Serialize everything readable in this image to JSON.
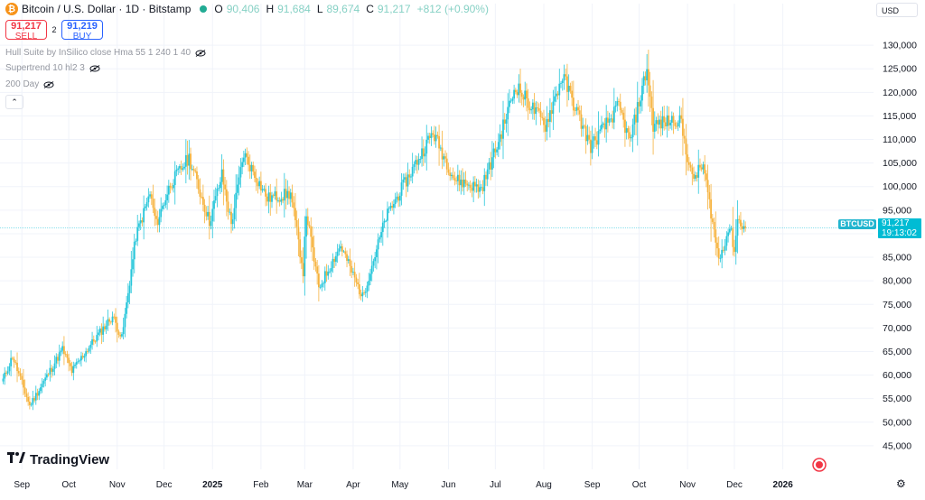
{
  "header": {
    "title": "Bitcoin / U.S. Dollar · 1D · Bitstamp",
    "coin_icon": "bitcoin-icon",
    "ohlc": [
      {
        "k": "O",
        "v": "90,406"
      },
      {
        "k": "H",
        "v": "91,684"
      },
      {
        "k": "L",
        "v": "89,674"
      },
      {
        "k": "C",
        "v": "91,217"
      }
    ],
    "change": "+812 (+0.90%)"
  },
  "trade": {
    "sell_price": "91,217",
    "sell_label": "SELL",
    "spread": "2",
    "buy_price": "91,219",
    "buy_label": "BUY"
  },
  "indicators": [
    {
      "label": "Hull Suite by InSilico close Hma 55 1 240 1 40"
    },
    {
      "label": "Supertrend 10 hl2 3"
    },
    {
      "label": "200 Day"
    }
  ],
  "currency": "USD",
  "symbol_label": "BTCUSD",
  "last_price": "91,217",
  "countdown": "19:13:02",
  "brand": "TradingView",
  "colors": {
    "up": "#26c6da",
    "down": "#f6b23c",
    "grid": "#f0f3fa",
    "last_line": "#00bcd4"
  },
  "chart_data": {
    "type": "candlestick",
    "ylim": [
      40000,
      135000
    ],
    "y_ticks": [
      45000,
      50000,
      55000,
      60000,
      65000,
      70000,
      75000,
      80000,
      85000,
      90000,
      95000,
      100000,
      105000,
      110000,
      115000,
      120000,
      125000,
      130000
    ],
    "y_tick_labels": [
      "45,000",
      "50,000",
      "55,000",
      "60,000",
      "65,000",
      "70,000",
      "75,000",
      "80,000",
      "85,000",
      "90,000",
      "95,000",
      "100,000",
      "105,000",
      "110,000",
      "115,000",
      "120,000",
      "125,000",
      "130,000"
    ],
    "x_ticks": [
      {
        "label": "Sep",
        "date": "2024-09-01"
      },
      {
        "label": "Oct",
        "date": "2024-10-01"
      },
      {
        "label": "Nov",
        "date": "2024-11-01"
      },
      {
        "label": "Dec",
        "date": "2024-12-01"
      },
      {
        "label": "2025",
        "date": "2025-01-01"
      },
      {
        "label": "Feb",
        "date": "2025-02-01"
      },
      {
        "label": "Mar",
        "date": "2025-03-01"
      },
      {
        "label": "Apr",
        "date": "2025-04-01"
      },
      {
        "label": "May",
        "date": "2025-05-01"
      },
      {
        "label": "Jun",
        "date": "2025-06-01"
      },
      {
        "label": "Jul",
        "date": "2025-07-01"
      },
      {
        "label": "Aug",
        "date": "2025-08-01"
      },
      {
        "label": "Sep",
        "date": "2025-09-01"
      },
      {
        "label": "Oct",
        "date": "2025-10-01"
      },
      {
        "label": "Nov",
        "date": "2025-11-01"
      },
      {
        "label": "Dec",
        "date": "2025-12-01"
      },
      {
        "label": "2026",
        "date": "2026-01-01"
      }
    ],
    "last_price": 91217,
    "closes": [
      {
        "date": "2024-08-20",
        "close": 59000
      },
      {
        "date": "2024-08-26",
        "close": 64000
      },
      {
        "date": "2024-09-06",
        "close": 53500
      },
      {
        "date": "2024-09-27",
        "close": 65500
      },
      {
        "date": "2024-10-03",
        "close": 60800
      },
      {
        "date": "2024-10-14",
        "close": 66000
      },
      {
        "date": "2024-10-29",
        "close": 72500
      },
      {
        "date": "2024-11-04",
        "close": 67800
      },
      {
        "date": "2024-11-13",
        "close": 89500
      },
      {
        "date": "2024-11-22",
        "close": 98500
      },
      {
        "date": "2024-11-26",
        "close": 92000
      },
      {
        "date": "2024-12-05",
        "close": 100500
      },
      {
        "date": "2024-12-17",
        "close": 106200
      },
      {
        "date": "2024-12-30",
        "close": 92500
      },
      {
        "date": "2025-01-07",
        "close": 102500
      },
      {
        "date": "2025-01-13",
        "close": 92000
      },
      {
        "date": "2025-01-21",
        "close": 107000
      },
      {
        "date": "2025-02-05",
        "close": 97500
      },
      {
        "date": "2025-02-20",
        "close": 98500
      },
      {
        "date": "2025-02-28",
        "close": 82000
      },
      {
        "date": "2025-03-02",
        "close": 94500
      },
      {
        "date": "2025-03-10",
        "close": 78500
      },
      {
        "date": "2025-03-24",
        "close": 87500
      },
      {
        "date": "2025-04-07",
        "close": 76500
      },
      {
        "date": "2025-04-22",
        "close": 93500
      },
      {
        "date": "2025-05-22",
        "close": 111500
      },
      {
        "date": "2025-06-05",
        "close": 101500
      },
      {
        "date": "2025-06-22",
        "close": 99500
      },
      {
        "date": "2025-07-03",
        "close": 109500
      },
      {
        "date": "2025-07-14",
        "close": 121500
      },
      {
        "date": "2025-08-02",
        "close": 113000
      },
      {
        "date": "2025-08-13",
        "close": 123500
      },
      {
        "date": "2025-08-31",
        "close": 108500
      },
      {
        "date": "2025-09-18",
        "close": 117000
      },
      {
        "date": "2025-09-25",
        "close": 109500
      },
      {
        "date": "2025-10-06",
        "close": 125000
      },
      {
        "date": "2025-10-10",
        "close": 113000
      },
      {
        "date": "2025-10-27",
        "close": 114500
      },
      {
        "date": "2025-11-04",
        "close": 101500
      },
      {
        "date": "2025-11-11",
        "close": 104500
      },
      {
        "date": "2025-11-21",
        "close": 84500
      },
      {
        "date": "2025-11-28",
        "close": 91500
      },
      {
        "date": "2025-12-01",
        "close": 86500
      },
      {
        "date": "2025-12-03",
        "close": 93000
      },
      {
        "date": "2025-12-08",
        "close": 91217
      }
    ]
  }
}
